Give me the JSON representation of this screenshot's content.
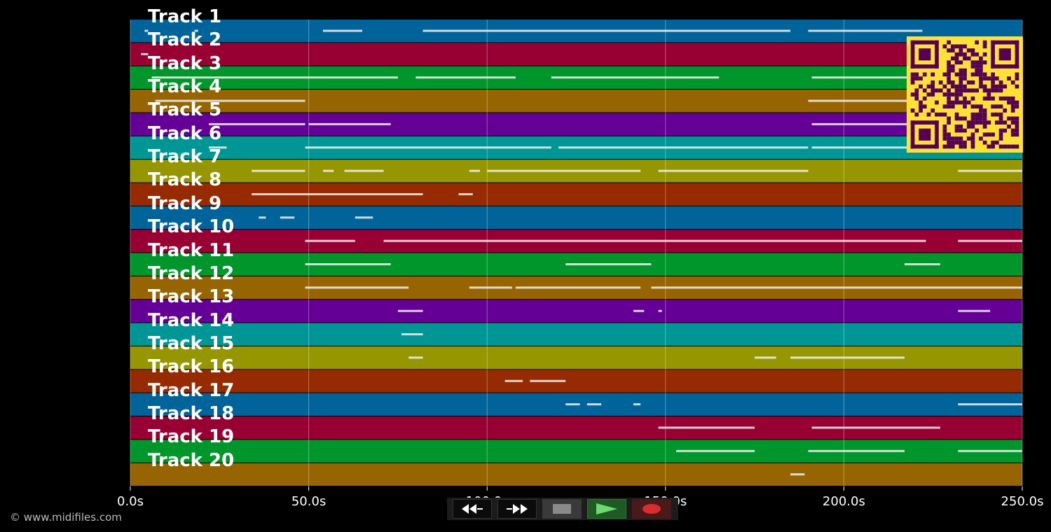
{
  "tracks": [
    {
      "label": "Track 1",
      "color": "#00649a"
    },
    {
      "label": "Track 2",
      "color": "#980033"
    },
    {
      "label": "Track 3",
      "color": "#00962b"
    },
    {
      "label": "Track 4",
      "color": "#966400"
    },
    {
      "label": "Track 5",
      "color": "#640096"
    },
    {
      "label": "Track 6",
      "color": "#009696"
    },
    {
      "label": "Track 7",
      "color": "#969600"
    },
    {
      "label": "Track 8",
      "color": "#962a00"
    },
    {
      "label": "Track 9",
      "color": "#00649a"
    },
    {
      "label": "Track 10",
      "color": "#980033"
    },
    {
      "label": "Track 11",
      "color": "#00962b"
    },
    {
      "label": "Track 12",
      "color": "#966400"
    },
    {
      "label": "Track 13",
      "color": "#640096"
    },
    {
      "label": "Track 14",
      "color": "#009696"
    },
    {
      "label": "Track 15",
      "color": "#969600"
    },
    {
      "label": "Track 16",
      "color": "#962a00"
    },
    {
      "label": "Track 17",
      "color": "#00649a"
    },
    {
      "label": "Track 18",
      "color": "#980033"
    },
    {
      "label": "Track 19",
      "color": "#00962b"
    },
    {
      "label": "Track 20",
      "color": "#966400"
    }
  ],
  "timeline": {
    "start_s": 0,
    "end_s": 250,
    "tick_labels": [
      "0.0s",
      "50.0s",
      "100.0s",
      "150.0s",
      "200.0s",
      "250.0s"
    ],
    "tick_values": [
      0,
      50,
      100,
      150,
      200,
      250
    ]
  },
  "notes": [
    {
      "track": 1,
      "segments": [
        [
          4,
          5
        ],
        [
          18,
          19
        ],
        [
          54,
          65
        ],
        [
          82,
          185
        ],
        [
          190,
          222
        ]
      ]
    },
    {
      "track": 2,
      "segments": [
        [
          3,
          5
        ]
      ]
    },
    {
      "track": 3,
      "segments": [
        [
          6,
          75
        ],
        [
          80,
          108
        ],
        [
          118,
          165
        ],
        [
          191,
          222
        ]
      ]
    },
    {
      "track": 4,
      "segments": [
        [
          7,
          49
        ],
        [
          190,
          218
        ]
      ]
    },
    {
      "track": 5,
      "segments": [
        [
          22,
          49
        ],
        [
          50,
          73
        ],
        [
          191,
          218
        ]
      ]
    },
    {
      "track": 6,
      "segments": [
        [
          22,
          27
        ],
        [
          49,
          118
        ],
        [
          120,
          190
        ],
        [
          191,
          230
        ]
      ]
    },
    {
      "track": 7,
      "segments": [
        [
          34,
          49
        ],
        [
          54,
          57
        ],
        [
          60,
          71
        ],
        [
          95,
          98
        ],
        [
          100,
          143
        ],
        [
          148,
          190
        ],
        [
          232,
          250
        ]
      ]
    },
    {
      "track": 8,
      "segments": [
        [
          34,
          48
        ],
        [
          48,
          82
        ],
        [
          92,
          96
        ]
      ]
    },
    {
      "track": 9,
      "segments": [
        [
          36,
          38
        ],
        [
          42,
          46
        ],
        [
          63,
          68
        ]
      ]
    },
    {
      "track": 10,
      "segments": [
        [
          49,
          63
        ],
        [
          71,
          223
        ],
        [
          232,
          250
        ]
      ]
    },
    {
      "track": 11,
      "segments": [
        [
          49,
          73
        ],
        [
          122,
          146
        ],
        [
          217,
          227
        ]
      ]
    },
    {
      "track": 12,
      "segments": [
        [
          49,
          78
        ],
        [
          95,
          107
        ],
        [
          108,
          143
        ],
        [
          146,
          250
        ]
      ]
    },
    {
      "track": 13,
      "segments": [
        [
          75,
          82
        ],
        [
          141,
          144
        ],
        [
          148,
          149
        ],
        [
          232,
          241
        ]
      ]
    },
    {
      "track": 14,
      "segments": [
        [
          76,
          82
        ]
      ]
    },
    {
      "track": 15,
      "segments": [
        [
          78,
          82
        ],
        [
          175,
          181
        ],
        [
          185,
          217
        ]
      ]
    },
    {
      "track": 16,
      "segments": [
        [
          105,
          110
        ],
        [
          112,
          122
        ]
      ]
    },
    {
      "track": 17,
      "segments": [
        [
          122,
          126
        ],
        [
          128,
          132
        ],
        [
          141,
          143
        ],
        [
          232,
          250
        ]
      ]
    },
    {
      "track": 18,
      "segments": [
        [
          148,
          175
        ],
        [
          191,
          227
        ]
      ]
    },
    {
      "track": 19,
      "segments": [
        [
          153,
          175
        ],
        [
          190,
          217
        ],
        [
          232,
          250
        ]
      ]
    },
    {
      "track": 20,
      "segments": [
        [
          185,
          189
        ]
      ]
    }
  ],
  "footer": {
    "copyright": "© www.midifiles.com"
  },
  "transport": {
    "rewind_icon": "rewind-icon",
    "fastforward_icon": "fast-forward-icon",
    "stop_icon": "stop-icon",
    "play_icon": "play-icon",
    "record_icon": "record-icon"
  },
  "qr_colors": {
    "bg": "#ffe135",
    "fg": "#550055"
  }
}
